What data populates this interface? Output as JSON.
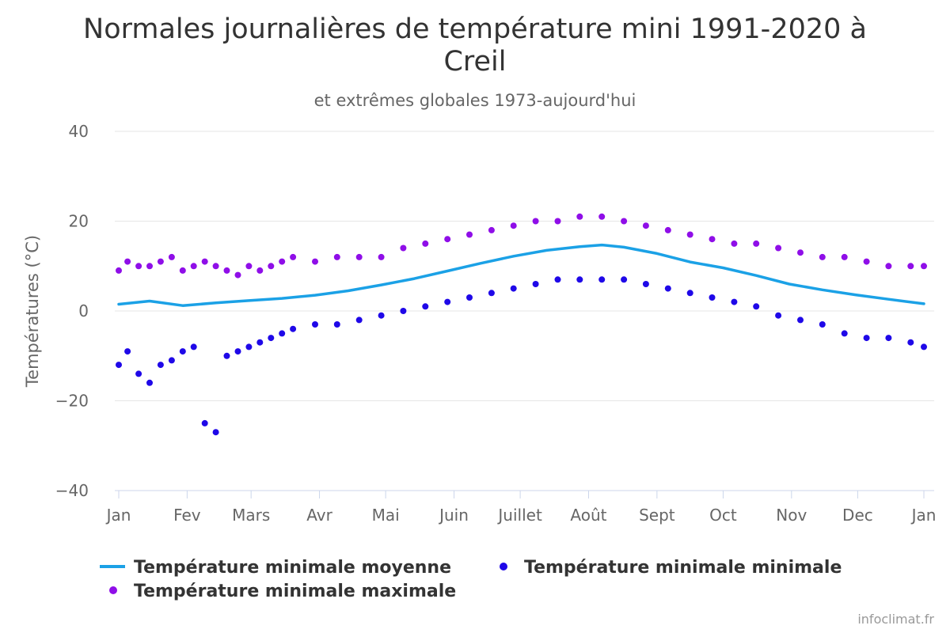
{
  "chart_data": {
    "type": "line",
    "title_line1": "Normales journalières de température mini 1991-2020 à",
    "title_line2": "Creil",
    "subtitle": "et extrêmes globales 1973-aujourd'hui",
    "ylabel": "Températures (°C)",
    "xlabel": "",
    "ylim": [
      -40,
      40
    ],
    "yticks": [
      40,
      20,
      0,
      -20,
      -40
    ],
    "ytick_labels": [
      "40",
      "20",
      "0",
      "−20",
      "−40"
    ],
    "xticks": [
      {
        "day": 1,
        "label": "Jan"
      },
      {
        "day": 32,
        "label": "Fev"
      },
      {
        "day": 61,
        "label": "Mars"
      },
      {
        "day": 92,
        "label": "Avr"
      },
      {
        "day": 122,
        "label": "Mai"
      },
      {
        "day": 153,
        "label": "Juin"
      },
      {
        "day": 183,
        "label": "Juillet"
      },
      {
        "day": 214,
        "label": "Août"
      },
      {
        "day": 245,
        "label": "Sept"
      },
      {
        "day": 275,
        "label": "Oct"
      },
      {
        "day": 306,
        "label": "Nov"
      },
      {
        "day": 336,
        "label": "Dec"
      },
      {
        "day": 366,
        "label": "Jan"
      }
    ],
    "xlim": [
      1,
      366
    ],
    "grid": true,
    "legend_position": "bottom",
    "series": [
      {
        "name": "Température minimale moyenne",
        "kind": "line",
        "color": "#1ba1e6",
        "x": [
          1,
          15,
          30,
          45,
          60,
          75,
          90,
          105,
          120,
          135,
          150,
          165,
          180,
          195,
          210,
          220,
          230,
          245,
          260,
          275,
          290,
          305,
          320,
          335,
          350,
          366
        ],
        "values": [
          1.5,
          2.2,
          1.2,
          1.8,
          2.3,
          2.8,
          3.5,
          4.5,
          5.8,
          7.2,
          8.9,
          10.6,
          12.2,
          13.5,
          14.3,
          14.7,
          14.2,
          12.8,
          10.9,
          9.6,
          7.9,
          6.0,
          4.7,
          3.6,
          2.6,
          1.6
        ]
      },
      {
        "name": "Température minimale minimale",
        "kind": "scatter",
        "color": "#1f08e8",
        "x": [
          1,
          5,
          10,
          15,
          20,
          25,
          30,
          35,
          40,
          45,
          50,
          55,
          60,
          65,
          70,
          75,
          80,
          90,
          100,
          110,
          120,
          130,
          140,
          150,
          160,
          170,
          180,
          190,
          200,
          210,
          220,
          230,
          240,
          250,
          260,
          270,
          280,
          290,
          300,
          310,
          320,
          330,
          340,
          350,
          360,
          366
        ],
        "values": [
          -12,
          -9,
          -14,
          -16,
          -12,
          -11,
          -9,
          -8,
          -25,
          -27,
          -10,
          -9,
          -8,
          -7,
          -6,
          -5,
          -4,
          -3,
          -3,
          -2,
          -1,
          0,
          1,
          2,
          3,
          4,
          5,
          6,
          7,
          7,
          7,
          7,
          6,
          5,
          4,
          3,
          2,
          1,
          -1,
          -2,
          -3,
          -5,
          -6,
          -6,
          -7,
          -8
        ]
      },
      {
        "name": "Température minimale maximale",
        "kind": "scatter",
        "color": "#8f0ee8",
        "x": [
          1,
          5,
          10,
          15,
          20,
          25,
          30,
          35,
          40,
          45,
          50,
          55,
          60,
          65,
          70,
          75,
          80,
          90,
          100,
          110,
          120,
          130,
          140,
          150,
          160,
          170,
          180,
          190,
          200,
          210,
          220,
          230,
          240,
          250,
          260,
          270,
          280,
          290,
          300,
          310,
          320,
          330,
          340,
          350,
          360,
          366
        ],
        "values": [
          9,
          11,
          10,
          10,
          11,
          12,
          9,
          10,
          11,
          10,
          9,
          8,
          10,
          9,
          10,
          11,
          12,
          11,
          12,
          12,
          12,
          14,
          15,
          16,
          17,
          18,
          19,
          20,
          20,
          21,
          21,
          20,
          19,
          18,
          17,
          16,
          15,
          15,
          14,
          13,
          12,
          12,
          11,
          10,
          10,
          10
        ]
      }
    ]
  },
  "credit": "infoclimat.fr"
}
